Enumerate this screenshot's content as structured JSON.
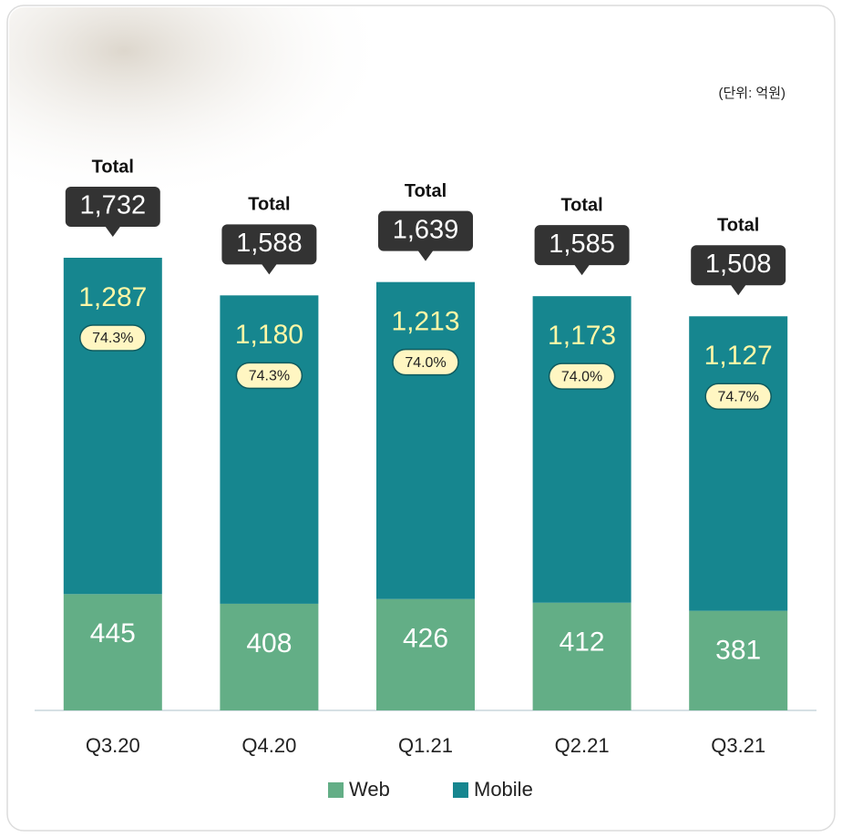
{
  "chart_data": {
    "type": "stacked-bar",
    "unit_label": "(단위: 억원)",
    "categories": [
      "Q3.20",
      "Q4.20",
      "Q1.21",
      "Q2.21",
      "Q3.21"
    ],
    "series": [
      {
        "name": "Web",
        "color": "#63ae86",
        "values": [
          445,
          408,
          426,
          412,
          381
        ]
      },
      {
        "name": "Mobile",
        "color": "#16868f",
        "values": [
          1287,
          1180,
          1213,
          1173,
          1127
        ],
        "value_labels": [
          "1,287",
          "1,180",
          "1,213",
          "1,173",
          "1,127"
        ]
      }
    ],
    "total_caption": "Total",
    "totals": [
      1732,
      1588,
      1639,
      1585,
      1508
    ],
    "total_labels": [
      "1,732",
      "1,588",
      "1,639",
      "1,585",
      "1,508"
    ],
    "shares": [
      74.3,
      74.3,
      74.0,
      74.0,
      74.7
    ],
    "share_labels": [
      "74.3%",
      "74.3%",
      "74.0%",
      "74.0%",
      "74.7%"
    ]
  }
}
